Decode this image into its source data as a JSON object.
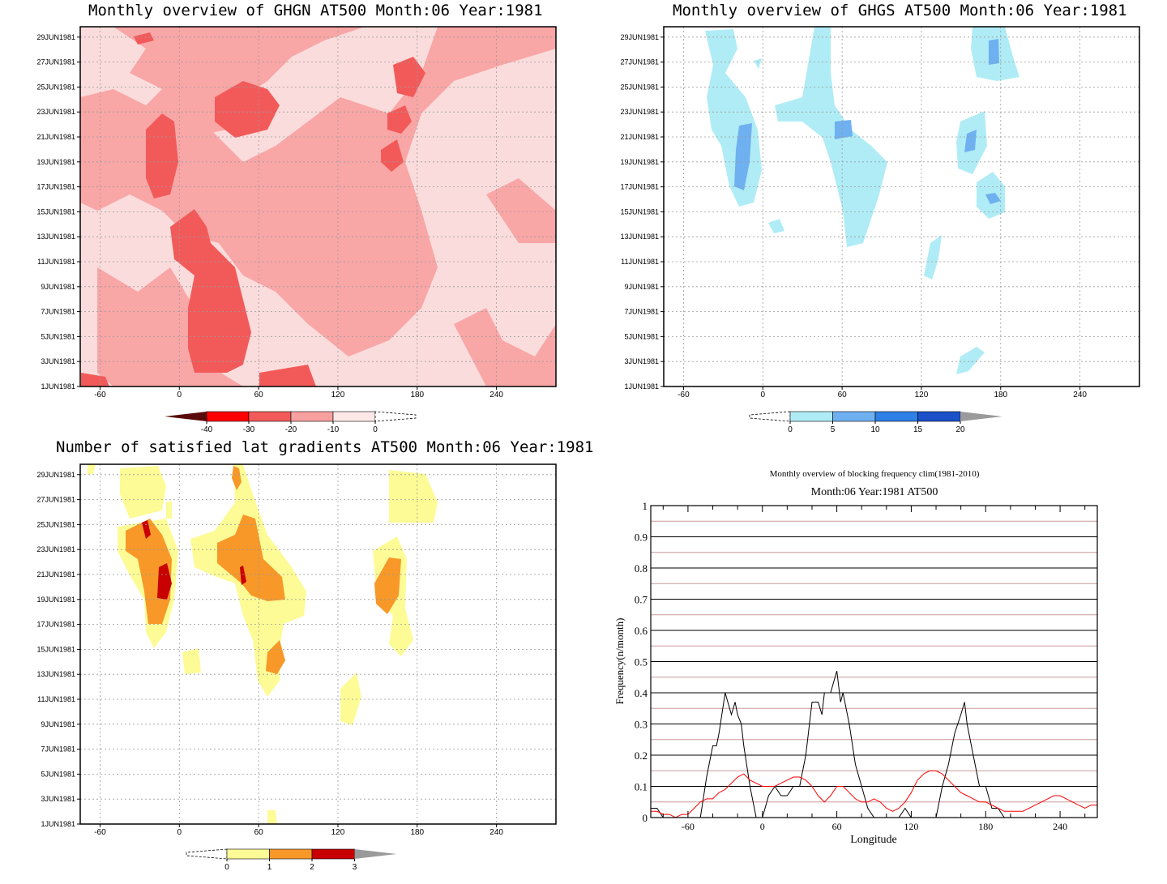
{
  "panels": {
    "ghgn": {
      "title": "Monthly overview of GHGN AT500 Month:06 Year:1981",
      "colorbar_labels": [
        "-40",
        "-30",
        "-20",
        "-10",
        "0"
      ],
      "colorbar_colors": [
        "#5a0a0a",
        "#ff0000",
        "#f25a5a",
        "#f7a0a0",
        "#fde8e8"
      ]
    },
    "ghgs": {
      "title": "Monthly overview of GHGS AT500 Month:06 Year:1981",
      "colorbar_labels": [
        "0",
        "5",
        "10",
        "15",
        "20"
      ],
      "colorbar_colors": [
        "#b0ecf6",
        "#6fb0f0",
        "#2e7fe6",
        "#1a50c8",
        "#9a9a9a"
      ]
    },
    "lat": {
      "title": "Number of satisfied lat gradients AT500 Month:06 Year:1981",
      "colorbar_labels": [
        "0",
        "1",
        "2",
        "3"
      ],
      "colorbar_colors": [
        "#fdfb96",
        "#f79828",
        "#c80000",
        "#9a9a9a"
      ]
    }
  },
  "shared_axes": {
    "x_tick_labels": [
      "-60",
      "0",
      "60",
      "120",
      "180",
      "240"
    ],
    "y_tick_labels": [
      "1JUN1981",
      "3JUN1981",
      "5JUN1981",
      "7JUN1981",
      "9JUN1981",
      "11JUN1981",
      "13JUN1981",
      "15JUN1981",
      "17JUN1981",
      "19JUN1981",
      "21JUN1981",
      "23JUN1981",
      "25JUN1981",
      "27JUN1981",
      "29JUN1981"
    ]
  },
  "chart_data": [
    {
      "type": "heatmap",
      "title": "Monthly overview of GHGN AT500 Month:06 Year:1981",
      "xlim": [
        -75,
        285
      ],
      "x_ticks": [
        -60,
        0,
        60,
        120,
        180,
        240
      ],
      "y_ticks": [
        "1JUN1981",
        "3JUN1981",
        "5JUN1981",
        "7JUN1981",
        "9JUN1981",
        "11JUN1981",
        "13JUN1981",
        "15JUN1981",
        "17JUN1981",
        "19JUN1981",
        "21JUN1981",
        "23JUN1981",
        "25JUN1981",
        "27JUN1981",
        "29JUN1981"
      ],
      "legend_levels": [
        -40,
        -30,
        -20,
        -10,
        0
      ],
      "grid": true
    },
    {
      "type": "heatmap",
      "title": "Monthly overview of GHGS AT500 Month:06 Year:1981",
      "xlim": [
        -75,
        285
      ],
      "x_ticks": [
        -60,
        0,
        60,
        120,
        180,
        240
      ],
      "y_ticks": [
        "1JUN1981",
        "3JUN1981",
        "5JUN1981",
        "7JUN1981",
        "9JUN1981",
        "11JUN1981",
        "13JUN1981",
        "15JUN1981",
        "17JUN1981",
        "19JUN1981",
        "21JUN1981",
        "23JUN1981",
        "25JUN1981",
        "27JUN1981",
        "29JUN1981"
      ],
      "legend_levels": [
        0,
        5,
        10,
        15,
        20
      ],
      "grid": true
    },
    {
      "type": "heatmap",
      "title": "Number of satisfied lat gradients AT500 Month:06 Year:1981",
      "xlim": [
        -75,
        285
      ],
      "x_ticks": [
        -60,
        0,
        60,
        120,
        180,
        240
      ],
      "y_ticks": [
        "1JUN1981",
        "3JUN1981",
        "5JUN1981",
        "7JUN1981",
        "9JUN1981",
        "11JUN1981",
        "13JUN1981",
        "15JUN1981",
        "17JUN1981",
        "19JUN1981",
        "21JUN1981",
        "23JUN1981",
        "25JUN1981",
        "27JUN1981",
        "29JUN1981"
      ],
      "legend_levels": [
        0,
        1,
        2,
        3
      ],
      "grid": true
    },
    {
      "type": "line",
      "title": "Monthly overview of blocking frequency clim(1981-2010)",
      "subtitle": "Month:06 Year:1981  AT500",
      "xlabel": "Longitude",
      "ylabel": "Frequency(n/month)",
      "xlim": [
        -90,
        270
      ],
      "ylim": [
        0,
        1
      ],
      "x_ticks": [
        -60,
        0,
        60,
        120,
        180,
        240
      ],
      "y_ticks": [
        0,
        0.1,
        0.2,
        0.3,
        0.4,
        0.5,
        0.6,
        0.7,
        0.8,
        0.9,
        1
      ],
      "grid": true,
      "series": [
        {
          "color": "#000000",
          "x": [
            -90,
            -85,
            -80,
            -75,
            -70,
            -65,
            -60,
            -55,
            -50,
            -45,
            -40,
            -37,
            -35,
            -30,
            -25,
            -22,
            -20,
            -17,
            -15,
            -10,
            -5,
            0,
            5,
            10,
            15,
            20,
            25,
            30,
            35,
            40,
            45,
            48,
            50,
            55,
            60,
            63,
            65,
            70,
            75,
            80,
            85,
            90,
            95,
            100,
            105,
            110,
            115,
            120,
            125,
            130,
            135,
            140,
            145,
            150,
            155,
            160,
            163,
            165,
            170,
            175,
            180,
            185,
            190,
            195,
            200,
            210,
            220,
            230,
            240,
            250,
            260,
            270
          ],
          "y": [
            0.03,
            0.03,
            0.0,
            0.0,
            0.0,
            0.0,
            0.0,
            0.0,
            0.0,
            0.13,
            0.23,
            0.23,
            0.27,
            0.4,
            0.33,
            0.37,
            0.33,
            0.3,
            0.23,
            0.1,
            0.0,
            0.0,
            0.07,
            0.1,
            0.07,
            0.07,
            0.1,
            0.1,
            0.2,
            0.37,
            0.37,
            0.33,
            0.4,
            0.4,
            0.47,
            0.37,
            0.4,
            0.3,
            0.17,
            0.1,
            0.03,
            0.0,
            0.0,
            0.0,
            0.0,
            0.0,
            0.03,
            0.0,
            0.0,
            0.0,
            0.0,
            0.0,
            0.1,
            0.17,
            0.27,
            0.33,
            0.37,
            0.3,
            0.2,
            0.1,
            0.1,
            0.03,
            0.03,
            0.0,
            0.0,
            0.0,
            0.0,
            0.0,
            0.0,
            0.0,
            0.0,
            0.0
          ]
        },
        {
          "color": "#ff0000",
          "x": [
            -90,
            -85,
            -80,
            -75,
            -70,
            -65,
            -60,
            -55,
            -50,
            -45,
            -40,
            -35,
            -30,
            -25,
            -20,
            -15,
            -10,
            -5,
            0,
            5,
            10,
            15,
            20,
            25,
            30,
            35,
            40,
            45,
            50,
            55,
            60,
            65,
            70,
            75,
            80,
            85,
            90,
            95,
            100,
            105,
            110,
            115,
            120,
            125,
            130,
            135,
            140,
            145,
            150,
            155,
            160,
            165,
            170,
            175,
            180,
            185,
            190,
            195,
            200,
            205,
            210,
            215,
            220,
            225,
            230,
            235,
            240,
            245,
            250,
            255,
            260,
            265,
            270
          ],
          "y": [
            0.02,
            0.02,
            0.01,
            0.01,
            0.0,
            0.01,
            0.01,
            0.03,
            0.05,
            0.06,
            0.06,
            0.08,
            0.09,
            0.11,
            0.13,
            0.14,
            0.12,
            0.11,
            0.1,
            0.1,
            0.1,
            0.11,
            0.12,
            0.13,
            0.13,
            0.12,
            0.1,
            0.07,
            0.05,
            0.07,
            0.1,
            0.1,
            0.08,
            0.06,
            0.05,
            0.05,
            0.06,
            0.05,
            0.03,
            0.02,
            0.03,
            0.05,
            0.08,
            0.12,
            0.14,
            0.15,
            0.15,
            0.14,
            0.12,
            0.1,
            0.08,
            0.07,
            0.06,
            0.05,
            0.05,
            0.04,
            0.03,
            0.02,
            0.02,
            0.02,
            0.02,
            0.03,
            0.04,
            0.05,
            0.06,
            0.07,
            0.07,
            0.06,
            0.05,
            0.04,
            0.03,
            0.04,
            0.04
          ]
        }
      ]
    }
  ],
  "line_panel": {
    "title": "Monthly overview of blocking frequency clim(1981-2010)",
    "subtitle": "Month:06 Year:1981  AT500",
    "xlabel": "Longitude",
    "ylabel": "Frequency(n/month)",
    "y_tick_labels": [
      "0",
      "0.1",
      "0.2",
      "0.3",
      "0.4",
      "0.5",
      "0.6",
      "0.7",
      "0.8",
      "0.9",
      "1"
    ],
    "x_tick_labels": [
      "-60",
      "0",
      "60",
      "120",
      "180",
      "240"
    ]
  }
}
